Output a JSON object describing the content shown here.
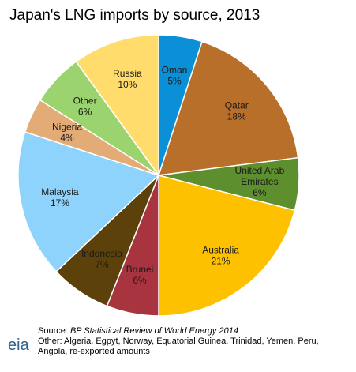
{
  "title": "Japan's LNG imports by source, 2013",
  "chart_data": {
    "type": "pie",
    "title": "Japan's LNG imports by source, 2013",
    "start_angle_deg": 0,
    "direction": "clockwise",
    "slices": [
      {
        "lines": [
          "Oman",
          "5%"
        ],
        "value": 5,
        "color": "#0b8fd6"
      },
      {
        "lines": [
          "Qatar",
          "18%"
        ],
        "value": 18,
        "color": "#b86f2a"
      },
      {
        "lines": [
          "United Arab",
          "Emirates",
          "6%"
        ],
        "value": 6,
        "color": "#5e8f2e"
      },
      {
        "lines": [
          "Australia",
          "21%"
        ],
        "value": 21,
        "color": "#fec100"
      },
      {
        "lines": [
          "Brunei",
          "6%"
        ],
        "value": 6,
        "color": "#a7343f"
      },
      {
        "lines": [
          "Indonesia",
          "7%"
        ],
        "value": 7,
        "color": "#5c420a"
      },
      {
        "lines": [
          "Malaysia",
          "17%"
        ],
        "value": 17,
        "color": "#8ed3fb"
      },
      {
        "lines": [
          "Nigeria",
          "4%"
        ],
        "value": 4,
        "color": "#e3ab76"
      },
      {
        "lines": [
          "Other",
          "6%"
        ],
        "value": 6,
        "color": "#9bd36e"
      },
      {
        "lines": [
          "Russia",
          "10%"
        ],
        "value": 10,
        "color": "#ffdc6b"
      }
    ]
  },
  "footer": {
    "logo_text": "eia",
    "source_prefix": "Source: ",
    "source_publication": "BP Statistical Review of World Energy 2014",
    "note_line1": "Other: Algeria, Egpyt, Norway, Equatorial Guinea, Trinidad, Yemen, Peru,",
    "note_line2": "Angola, re-exported amounts"
  }
}
